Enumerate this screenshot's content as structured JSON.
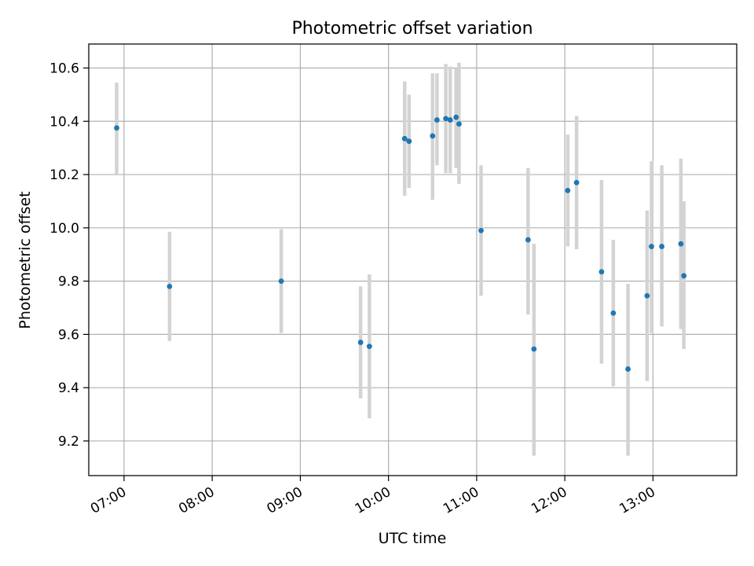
{
  "chart_data": {
    "type": "scatter",
    "title": "Photometric offset variation",
    "xlabel": "UTC time",
    "ylabel": "Photometric offset",
    "xlim": [
      "06:36",
      "13:57"
    ],
    "ylim": [
      9.07,
      10.69
    ],
    "x_ticks": [
      "07:00",
      "08:00",
      "09:00",
      "10:00",
      "11:00",
      "12:00",
      "13:00"
    ],
    "y_ticks": [
      9.2,
      9.4,
      9.6,
      9.8,
      10.0,
      10.2,
      10.4,
      10.6
    ],
    "grid": true,
    "colors": {
      "marker": "#1f77b4",
      "errorbar": "#d3d3d3",
      "grid": "#b0b0b0"
    },
    "points": [
      {
        "x": "06:55",
        "y": 10.375,
        "err_low": 10.2,
        "err_high": 10.545
      },
      {
        "x": "07:31",
        "y": 9.78,
        "err_low": 9.575,
        "err_high": 9.985
      },
      {
        "x": "08:47",
        "y": 9.8,
        "err_low": 9.605,
        "err_high": 9.995
      },
      {
        "x": "09:41",
        "y": 9.57,
        "err_low": 9.36,
        "err_high": 9.78
      },
      {
        "x": "09:47",
        "y": 9.555,
        "err_low": 9.285,
        "err_high": 9.825
      },
      {
        "x": "10:11",
        "y": 10.335,
        "err_low": 10.12,
        "err_high": 10.55
      },
      {
        "x": "10:14",
        "y": 10.325,
        "err_low": 10.15,
        "err_high": 10.5
      },
      {
        "x": "10:30",
        "y": 10.345,
        "err_low": 10.105,
        "err_high": 10.58
      },
      {
        "x": "10:33",
        "y": 10.405,
        "err_low": 10.235,
        "err_high": 10.58
      },
      {
        "x": "10:39",
        "y": 10.41,
        "err_low": 10.205,
        "err_high": 10.615
      },
      {
        "x": "10:42",
        "y": 10.405,
        "err_low": 10.205,
        "err_high": 10.605
      },
      {
        "x": "10:46",
        "y": 10.415,
        "err_low": 10.225,
        "err_high": 10.6
      },
      {
        "x": "10:48",
        "y": 10.39,
        "err_low": 10.165,
        "err_high": 10.62
      },
      {
        "x": "11:03",
        "y": 9.99,
        "err_low": 9.745,
        "err_high": 10.235
      },
      {
        "x": "11:35",
        "y": 9.955,
        "err_low": 9.675,
        "err_high": 10.225
      },
      {
        "x": "11:39",
        "y": 9.545,
        "err_low": 9.145,
        "err_high": 9.94
      },
      {
        "x": "12:02",
        "y": 10.14,
        "err_low": 9.93,
        "err_high": 10.35
      },
      {
        "x": "12:08",
        "y": 10.17,
        "err_low": 9.92,
        "err_high": 10.42
      },
      {
        "x": "12:25",
        "y": 9.835,
        "err_low": 9.49,
        "err_high": 10.18
      },
      {
        "x": "12:33",
        "y": 9.68,
        "err_low": 9.405,
        "err_high": 9.955
      },
      {
        "x": "12:43",
        "y": 9.47,
        "err_low": 9.145,
        "err_high": 9.79
      },
      {
        "x": "12:56",
        "y": 9.745,
        "err_low": 9.425,
        "err_high": 10.065
      },
      {
        "x": "12:59",
        "y": 9.93,
        "err_low": 9.605,
        "err_high": 10.25
      },
      {
        "x": "13:06",
        "y": 9.93,
        "err_low": 9.63,
        "err_high": 10.235
      },
      {
        "x": "13:19",
        "y": 9.94,
        "err_low": 9.62,
        "err_high": 10.26
      },
      {
        "x": "13:21",
        "y": 9.82,
        "err_low": 9.545,
        "err_high": 10.1
      }
    ]
  }
}
